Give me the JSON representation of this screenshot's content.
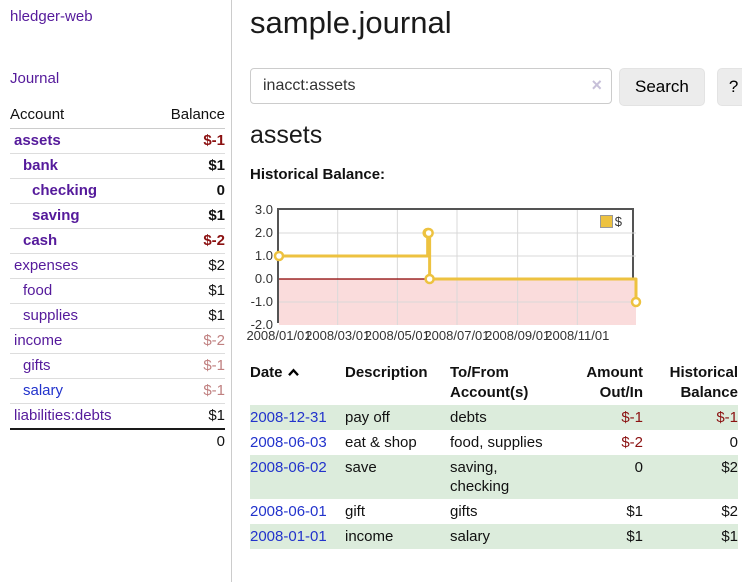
{
  "app_title": "hledger-web",
  "colors": {
    "link_purple": "#551a9b",
    "link_blue": "#2233cc",
    "negative_strong": "#8b1111",
    "negative_muted": "#c08080",
    "row_green": "#dcecdc",
    "button_bg": "#ececec"
  },
  "sidebar": {
    "journal_link": "Journal",
    "table": {
      "account_header": "Account",
      "balance_header": "Balance",
      "rows": [
        {
          "name": "assets",
          "level": 1,
          "bold": true,
          "color": "purple",
          "balance": "$-1",
          "balance_class": "neg"
        },
        {
          "name": "bank",
          "level": 2,
          "bold": true,
          "color": "purple",
          "balance": "$1",
          "balance_class": ""
        },
        {
          "name": "checking",
          "level": 3,
          "bold": true,
          "color": "purple",
          "balance": "0",
          "balance_class": ""
        },
        {
          "name": "saving",
          "level": 3,
          "bold": true,
          "color": "purple",
          "balance": "$1",
          "balance_class": ""
        },
        {
          "name": "cash",
          "level": 2,
          "bold": true,
          "color": "purple",
          "balance": "$-2",
          "balance_class": "neg"
        },
        {
          "name": "expenses",
          "level": 1,
          "bold": false,
          "color": "purple",
          "balance": "$2",
          "balance_class": ""
        },
        {
          "name": "food",
          "level": 2,
          "bold": false,
          "color": "purple",
          "balance": "$1",
          "balance_class": ""
        },
        {
          "name": "supplies",
          "level": 2,
          "bold": false,
          "color": "purple",
          "balance": "$1",
          "balance_class": ""
        },
        {
          "name": "income",
          "level": 1,
          "bold": false,
          "color": "purple",
          "balance": "$-2",
          "balance_class": "neg-muted"
        },
        {
          "name": "gifts",
          "level": 2,
          "bold": false,
          "color": "purple",
          "balance": "$-1",
          "balance_class": "neg-muted"
        },
        {
          "name": "salary",
          "level": 2,
          "bold": false,
          "color": "blue",
          "balance": "$-1",
          "balance_class": "neg-muted"
        },
        {
          "name": "liabilities:debts",
          "level": 1,
          "bold": false,
          "color": "purple",
          "balance": "$1",
          "balance_class": ""
        }
      ],
      "total": "0"
    }
  },
  "main": {
    "title": "sample.journal",
    "search": {
      "value": "inacct:assets",
      "clear": "×",
      "search_button": "Search",
      "help_button": "?"
    },
    "account_heading": "assets",
    "chart_title": "Historical Balance:"
  },
  "chart_data": {
    "type": "line",
    "line_style": "step-after",
    "title": "Historical Balance",
    "legend": [
      {
        "label": "$",
        "color": "#edc240"
      }
    ],
    "x_range": [
      "2008-01-01",
      "2008-12-31"
    ],
    "ylim": [
      -2.0,
      3.0
    ],
    "y_ticks": [
      3.0,
      2.0,
      1.0,
      0.0,
      -1.0,
      -2.0
    ],
    "y_tick_labels": [
      "3.0",
      "2.0",
      "1.0",
      "0.0",
      "-1.0",
      "-2.0"
    ],
    "x_ticks": [
      {
        "label": "2008/01/01",
        "date": "2008-01-01"
      },
      {
        "label": "2008/03/01",
        "date": "2008-03-01"
      },
      {
        "label": "2008/05/01",
        "date": "2008-05-01"
      },
      {
        "label": "2008/07/01",
        "date": "2008-07-01"
      },
      {
        "label": "2008/09/01",
        "date": "2008-09-01"
      },
      {
        "label": "2008/11/01",
        "date": "2008-11-01"
      }
    ],
    "series": [
      {
        "name": "$",
        "points": [
          {
            "date": "2008-01-01",
            "value": 1
          },
          {
            "date": "2008-06-01",
            "value": 2
          },
          {
            "date": "2008-06-02",
            "value": 2
          },
          {
            "date": "2008-06-03",
            "value": 0
          },
          {
            "date": "2008-12-31",
            "value": -1
          }
        ]
      }
    ],
    "colors": {
      "line": "#edc240",
      "marker_fill": "#ffffff",
      "negative_region": "#fadcdc",
      "zero_line": "#8b0000",
      "grid": "#d9d9d9",
      "border": "#545454",
      "tick_text": "#333333"
    }
  },
  "register": {
    "headers": {
      "date": "Date",
      "description": "Description",
      "tofrom": "To/From Account(s)",
      "amount": "Amount Out/In",
      "balance": "Historical Balance"
    },
    "rows": [
      {
        "date": "2008-12-31",
        "description": "pay off",
        "accounts": "debts",
        "amount": "$-1",
        "amount_neg": true,
        "balance": "$-1",
        "balance_neg": true
      },
      {
        "date": "2008-06-03",
        "description": "eat & shop",
        "accounts": "food, supplies",
        "amount": "$-2",
        "amount_neg": true,
        "balance": "0",
        "balance_neg": false
      },
      {
        "date": "2008-06-02",
        "description": "save",
        "accounts": "saving, checking",
        "amount": "0",
        "amount_neg": false,
        "balance": "$2",
        "balance_neg": false
      },
      {
        "date": "2008-06-01",
        "description": "gift",
        "accounts": "gifts",
        "amount": "$1",
        "amount_neg": false,
        "balance": "$2",
        "balance_neg": false
      },
      {
        "date": "2008-01-01",
        "description": "income",
        "accounts": "salary",
        "amount": "$1",
        "amount_neg": false,
        "balance": "$1",
        "balance_neg": false
      }
    ]
  }
}
